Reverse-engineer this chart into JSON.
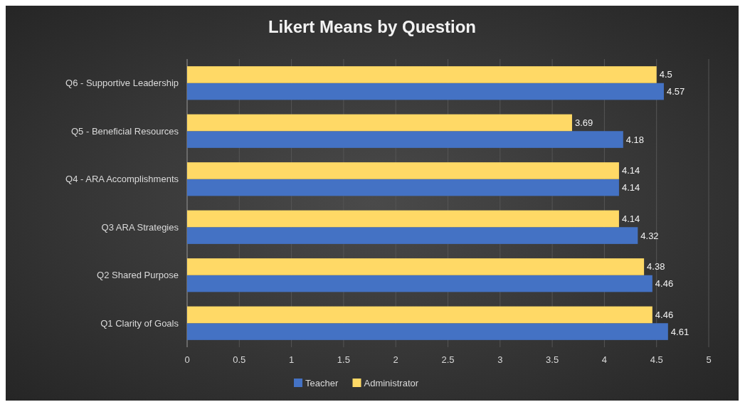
{
  "chart_data": {
    "type": "bar",
    "orientation": "horizontal",
    "title": "Likert Means by Question",
    "categories": [
      "Q6 - Supportive Leadership",
      "Q5 - Beneficial Resources",
      "Q4 - ARA Accomplishments",
      "Q3 ARA Strategies",
      "Q2 Shared Purpose",
      "Q1 Clarity of Goals"
    ],
    "series": [
      {
        "name": "Teacher",
        "color": "#4472c4",
        "values": [
          4.57,
          4.18,
          4.14,
          4.32,
          4.46,
          4.61
        ]
      },
      {
        "name": "Administrator",
        "color": "#ffd966",
        "values": [
          4.5,
          3.69,
          4.14,
          4.14,
          4.38,
          4.46
        ]
      }
    ],
    "xlim": [
      0,
      5
    ],
    "xticks": [
      0,
      0.5,
      1,
      1.5,
      2,
      2.5,
      3,
      3.5,
      4,
      4.5,
      5
    ],
    "grid": "x",
    "legend": "bottom",
    "data_labels": true
  }
}
